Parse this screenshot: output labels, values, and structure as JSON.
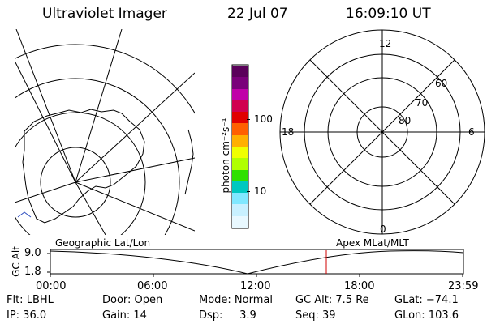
{
  "header": {
    "title": "Ultraviolet Imager",
    "date": "22 Jul 07",
    "time": "16:09:10 UT"
  },
  "colorbar": {
    "unit_label": "photon cm⁻²s⁻¹",
    "ticks": [
      "100",
      "10"
    ],
    "colors": [
      "#5a005a",
      "#7a007a",
      "#c000a8",
      "#d00050",
      "#e00000",
      "#ff6000",
      "#ffb000",
      "#f0ff00",
      "#b0ff00",
      "#30e000",
      "#00c8c0",
      "#80e8ff",
      "#c8f0ff",
      "#e8f8ff"
    ]
  },
  "left_panel": {
    "caption": "Geographic Lat/Lon"
  },
  "right_panel": {
    "caption": "Apex MLat/MLT",
    "mlt_labels": [
      "12",
      "18",
      "6",
      "0"
    ],
    "lat_labels": [
      "60",
      "70",
      "80"
    ]
  },
  "timeline": {
    "y_axis_label": "GC Alt",
    "y_ticks": [
      "9.0",
      "1.8"
    ],
    "x_ticks": [
      "00:00",
      "06:00",
      "12:00",
      "18:00",
      "23:59"
    ]
  },
  "info": {
    "flt": "Flt: LBHL",
    "ip": "IP: 36.0",
    "door": "Door: Open",
    "gain": "Gain: 14",
    "mode": "Mode: Normal",
    "dsp": "Dsp:     3.9",
    "gc_alt": "GC Alt: 7.5 Re",
    "seq": "Seq: 39",
    "glat": "GLat: −74.1",
    "glon": "GLon: 103.6"
  }
}
